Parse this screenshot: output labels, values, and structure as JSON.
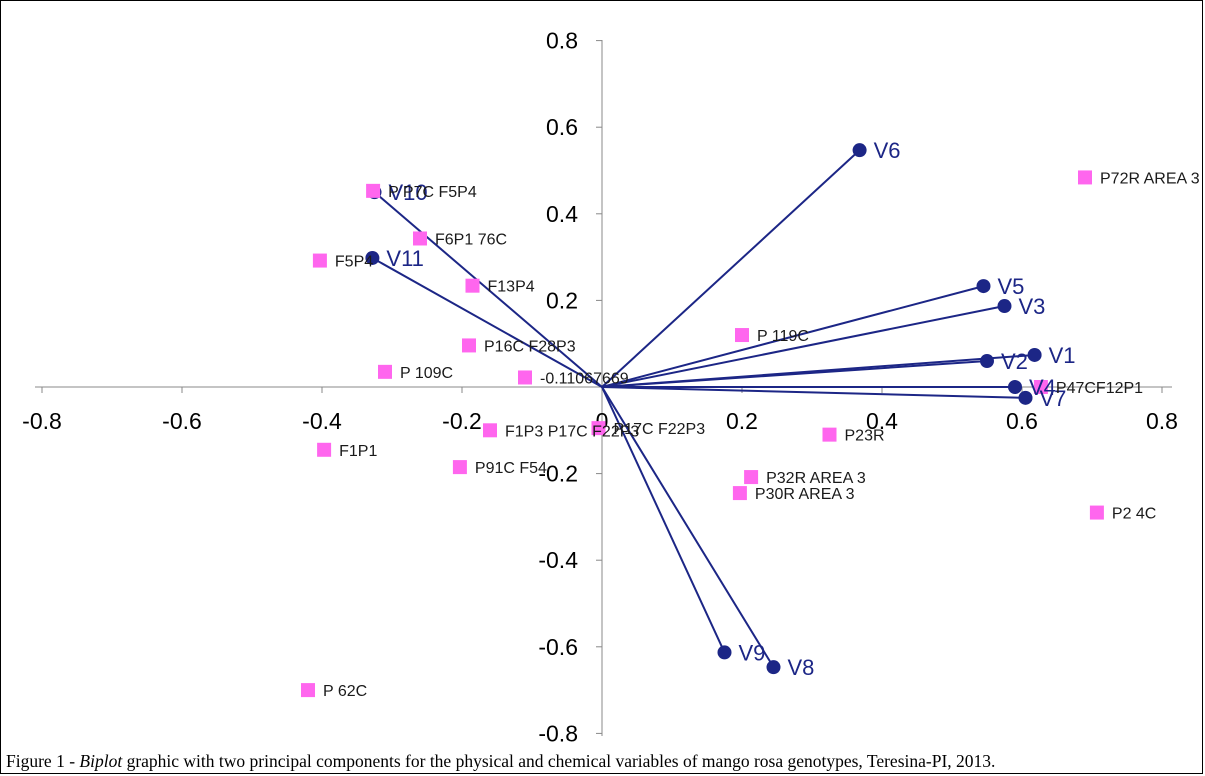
{
  "caption": {
    "prefix": "Figure 1 - ",
    "italic": "Biplot",
    "rest": " graphic with two principal components for the physical and chemical variables of mango rosa genotypes, Teresina-PI, 2013."
  },
  "chart_data": {
    "type": "scatter",
    "xlim": [
      -0.8,
      0.8
    ],
    "ylim": [
      -0.8,
      0.8
    ],
    "x_ticks": [
      "-0.8",
      "-0.6",
      "-0.4",
      "-0.2",
      "0",
      "0.2",
      "0.4",
      "0.6",
      "0.8"
    ],
    "y_ticks": [
      "0.8",
      "0.6",
      "0.4",
      "0.2",
      "0",
      "-0.2",
      "-0.4",
      "-0.6",
      "-0.8"
    ],
    "colors": {
      "vectors": "#1c2686",
      "genotypes": "#ff66ee",
      "axes": "#888888"
    },
    "variables": [
      {
        "label": "V1",
        "x": 0.618,
        "y": 0.074
      },
      {
        "label": "V2",
        "x": 0.55,
        "y": 0.06
      },
      {
        "label": "V3",
        "x": 0.575,
        "y": 0.187
      },
      {
        "label": "V4",
        "x": 0.59,
        "y": 0.0
      },
      {
        "label": "V5",
        "x": 0.545,
        "y": 0.233
      },
      {
        "label": "V6",
        "x": 0.368,
        "y": 0.547
      },
      {
        "label": "V7",
        "x": 0.605,
        "y": -0.025
      },
      {
        "label": "V8",
        "x": 0.245,
        "y": -0.647
      },
      {
        "label": "V9",
        "x": 0.175,
        "y": -0.613
      },
      {
        "label": "V10",
        "x": -0.325,
        "y": 0.45
      },
      {
        "label": "V11",
        "x": -0.328,
        "y": 0.298
      }
    ],
    "genotypes": [
      {
        "label": "P72R AREA 3",
        "x": 0.69,
        "y": 0.484
      },
      {
        "label": "P P7C F5P4",
        "x": -0.327,
        "y": 0.453
      },
      {
        "label": "F6P1 76C",
        "x": -0.26,
        "y": 0.343
      },
      {
        "label": "F5P4",
        "x": -0.403,
        "y": 0.292
      },
      {
        "label": "F13P4",
        "x": -0.185,
        "y": 0.234
      },
      {
        "label": "P 119C",
        "x": 0.2,
        "y": 0.12
      },
      {
        "label": "P16C F28P3",
        "x": -0.19,
        "y": 0.096
      },
      {
        "label": "P 109C",
        "x": -0.31,
        "y": 0.035
      },
      {
        "label": "-0.11067669",
        "x": -0.11,
        "y": 0.022
      },
      {
        "label": "P47CF12P1",
        "x": 0.627,
        "y": 0.0
      },
      {
        "label": "F1P3 P17C F22P3",
        "x": -0.16,
        "y": -0.1
      },
      {
        "label": "P17C F22P3",
        "x": -0.005,
        "y": -0.095
      },
      {
        "label": "P23R",
        "x": 0.325,
        "y": -0.11
      },
      {
        "label": "F1P1",
        "x": -0.397,
        "y": -0.145
      },
      {
        "label": "P91C F54",
        "x": -0.203,
        "y": -0.185
      },
      {
        "label": "P32R AREA 3",
        "x": 0.213,
        "y": -0.208
      },
      {
        "label": "P30R AREA 3",
        "x": 0.197,
        "y": -0.245
      },
      {
        "label": "P2 4C",
        "x": 0.707,
        "y": -0.29
      },
      {
        "label": "P 62C",
        "x": -0.42,
        "y": -0.7
      }
    ]
  }
}
